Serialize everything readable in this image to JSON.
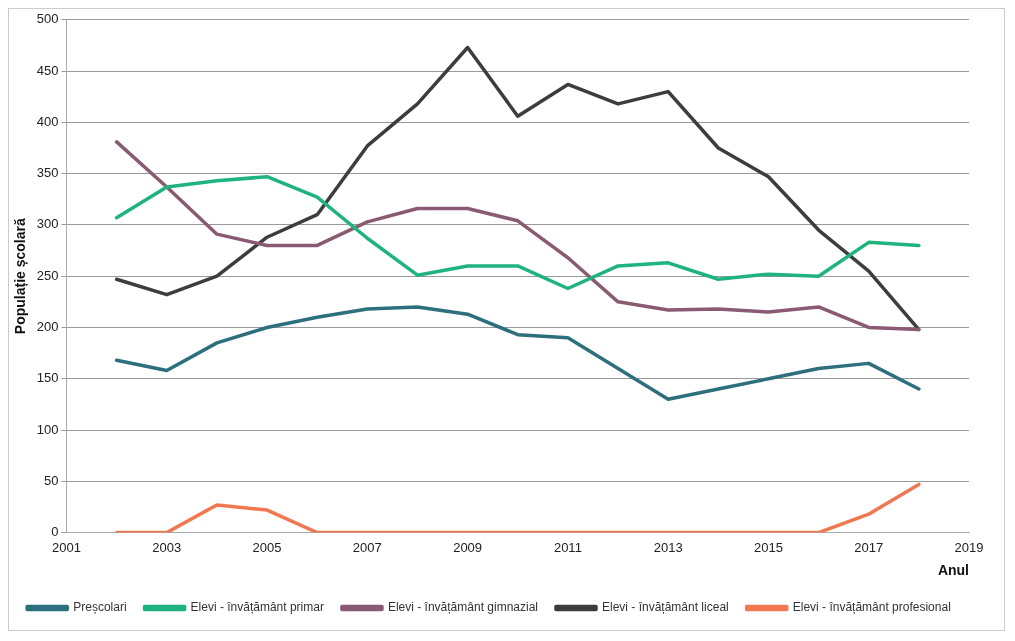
{
  "chart_data": {
    "type": "line",
    "xlabel": "Anul",
    "ylabel": "Populație școlară",
    "x": [
      2002,
      2003,
      2004,
      2005,
      2006,
      2007,
      2008,
      2009,
      2010,
      2011,
      2012,
      2013,
      2014,
      2015,
      2016,
      2017,
      2018
    ],
    "xlim": [
      2001,
      2019
    ],
    "xticks": [
      2001,
      2003,
      2005,
      2007,
      2009,
      2011,
      2013,
      2015,
      2017,
      2019
    ],
    "ylim": [
      0,
      500
    ],
    "yticks": [
      0,
      50,
      100,
      150,
      200,
      250,
      300,
      350,
      400,
      450,
      500
    ],
    "grid": "y",
    "legend": "bottom",
    "marker": "none",
    "line_style": "solid",
    "series": [
      {
        "name": "Preșcolari",
        "color": "#2e6f7e",
        "values": [
          168,
          158,
          185,
          200,
          210,
          218,
          220,
          213,
          193,
          190,
          160,
          130,
          140,
          150,
          160,
          165,
          140
        ]
      },
      {
        "name": "Elevi - învățământ primar",
        "color": "#1fb37e",
        "values": [
          307,
          337,
          343,
          347,
          327,
          287,
          251,
          260,
          260,
          238,
          260,
          263,
          247,
          252,
          250,
          283,
          280
        ]
      },
      {
        "name": "Elevi - învățământ gimnazial",
        "color": "#8a5a72",
        "values": [
          381,
          337,
          291,
          280,
          280,
          303,
          316,
          316,
          304,
          268,
          225,
          217,
          218,
          215,
          220,
          200,
          198
        ]
      },
      {
        "name": "Elevi - învățământ liceal",
        "color": "#3d3d3d",
        "values": [
          247,
          232,
          250,
          288,
          310,
          377,
          418,
          473,
          406,
          437,
          418,
          430,
          375,
          347,
          295,
          255,
          198
        ]
      },
      {
        "name": "Elevi - învățământ profesional",
        "color": "#f07850",
        "values": [
          0,
          0,
          27,
          22,
          0,
          0,
          0,
          0,
          0,
          0,
          0,
          0,
          0,
          0,
          0,
          18,
          47
        ]
      }
    ]
  }
}
